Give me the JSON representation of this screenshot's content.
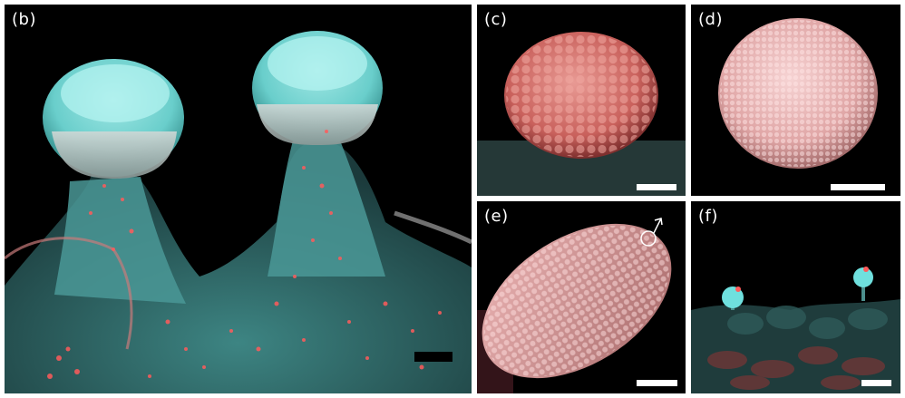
{
  "panels": {
    "b": {
      "label": "(b)",
      "scale_color": "#000000"
    },
    "c": {
      "label": "(c)",
      "scale_color": "#ffffff"
    },
    "d": {
      "label": "(d)",
      "scale_color": "#ffffff"
    },
    "e": {
      "label": "(e)",
      "scale_color": "#ffffff",
      "symbol": "male-symbol-icon"
    },
    "f": {
      "label": "(f)",
      "scale_color": "#ffffff"
    }
  },
  "colors": {
    "cyan": "#6fe0de",
    "tissue": "#3e8a88",
    "red_signal": "#ff5b5b",
    "pink_sphere": "#e9a2a2",
    "background": "#000000",
    "border": "#ffffff"
  }
}
